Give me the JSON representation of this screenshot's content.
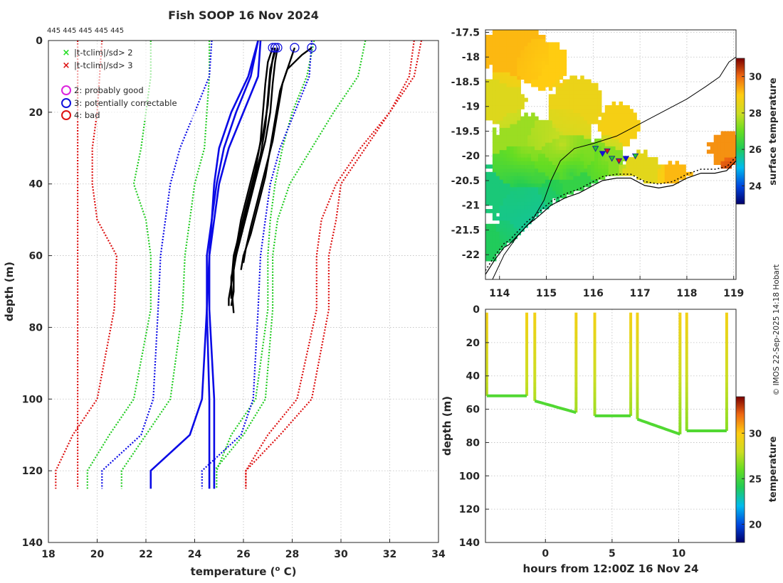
{
  "figure": {
    "title": "Fish SOOP 16 Nov 2024",
    "callsigns": "445 445 445 445 445",
    "watermark": "© IMOS 22-Sep-2025 14:18 Hobart"
  },
  "legend": {
    "items": [
      {
        "marker": "x",
        "color": "#22dd22",
        "label": "|t-tclim|/sd> 2"
      },
      {
        "marker": "x",
        "color": "#dd1111",
        "label": "|t-tclim|/sd> 3"
      },
      {
        "marker": "o",
        "color": "#dd22dd",
        "label": "2: probably good"
      },
      {
        "marker": "o",
        "color": "#1111dd",
        "label": "3: potentially correctable"
      },
      {
        "marker": "o",
        "color": "#dd1111",
        "label": "4: bad"
      }
    ]
  },
  "colors": {
    "profile": "#000000",
    "climatology_mean": "#0a0ae6",
    "sd2": "#22cc22",
    "sd3": "#dd1111",
    "coast": "#000000"
  },
  "chart_data": [
    {
      "id": "profiles",
      "type": "line",
      "xlabel": "temperature (°C)",
      "xlabel_parts": [
        "temperature (",
        "o",
        " C)"
      ],
      "ylabel": "depth (m)",
      "xlim": [
        18,
        34
      ],
      "ylim": [
        140,
        0
      ],
      "xticks": [
        18,
        20,
        22,
        24,
        26,
        28,
        30,
        32,
        34
      ],
      "yticks": [
        0,
        20,
        40,
        60,
        80,
        100,
        120,
        140
      ],
      "observed_profiles": [
        {
          "surface_temp": 27.3,
          "points": [
            [
              27.3,
              2
            ],
            [
              27.2,
              5
            ],
            [
              27.1,
              10
            ],
            [
              27.0,
              18
            ],
            [
              26.8,
              26
            ],
            [
              26.5,
              34
            ],
            [
              26.2,
              42
            ],
            [
              25.9,
              50
            ],
            [
              25.7,
              58
            ],
            [
              25.6,
              64
            ],
            [
              25.6,
              70
            ],
            [
              25.5,
              74
            ]
          ]
        },
        {
          "surface_temp": 27.4,
          "points": [
            [
              27.4,
              2
            ],
            [
              27.3,
              6
            ],
            [
              27.2,
              12
            ],
            [
              27.1,
              20
            ],
            [
              26.9,
              28
            ],
            [
              26.6,
              36
            ],
            [
              26.3,
              44
            ],
            [
              26.0,
              52
            ],
            [
              25.7,
              60
            ],
            [
              25.5,
              66
            ],
            [
              25.5,
              72
            ]
          ]
        },
        {
          "surface_temp": 28.1,
          "points": [
            [
              28.1,
              2
            ],
            [
              27.9,
              6
            ],
            [
              27.6,
              12
            ],
            [
              27.4,
              20
            ],
            [
              27.2,
              28
            ],
            [
              26.9,
              36
            ],
            [
              26.6,
              44
            ],
            [
              26.3,
              52
            ],
            [
              26.1,
              58
            ],
            [
              26.0,
              62
            ]
          ]
        },
        {
          "surface_temp": 28.8,
          "points": [
            [
              28.8,
              2
            ],
            [
              28.4,
              4
            ],
            [
              27.8,
              8
            ],
            [
              27.5,
              14
            ],
            [
              27.3,
              22
            ],
            [
              27.1,
              30
            ],
            [
              26.9,
              38
            ],
            [
              26.6,
              46
            ],
            [
              26.3,
              54
            ],
            [
              26.0,
              60
            ],
            [
              25.9,
              64
            ]
          ]
        },
        {
          "surface_temp": 27.2,
          "points": [
            [
              27.2,
              2
            ],
            [
              27.0,
              6
            ],
            [
              26.9,
              12
            ],
            [
              26.8,
              20
            ],
            [
              26.7,
              28
            ],
            [
              26.5,
              36
            ],
            [
              26.2,
              44
            ],
            [
              25.9,
              52
            ],
            [
              25.6,
              60
            ],
            [
              25.5,
              68
            ],
            [
              25.6,
              76
            ]
          ]
        },
        {
          "surface_temp": 27.3,
          "points": [
            [
              27.3,
              3
            ],
            [
              27.1,
              8
            ],
            [
              27.0,
              16
            ],
            [
              26.9,
              24
            ],
            [
              26.7,
              32
            ],
            [
              26.4,
              40
            ],
            [
              26.1,
              48
            ],
            [
              25.8,
              56
            ],
            [
              25.6,
              64
            ],
            [
              25.4,
              72
            ],
            [
              25.4,
              74
            ]
          ]
        }
      ],
      "climatology": {
        "depths": [
          0,
          10,
          20,
          30,
          40,
          50,
          60,
          75,
          100,
          110,
          120,
          125
        ],
        "mean": [
          [
            26.7,
            26.6,
            26.0,
            25.4,
            25.0,
            24.8,
            24.6,
            24.5,
            24.3,
            23.8,
            22.2,
            22.2
          ],
          [
            26.6,
            26.3,
            25.7,
            25.2,
            24.9,
            24.7,
            24.5,
            24.5,
            24.6,
            24.6,
            24.6,
            24.6
          ],
          [
            26.6,
            26.2,
            25.5,
            25.0,
            24.8,
            24.7,
            24.6,
            24.6,
            24.8,
            24.8,
            24.8,
            24.8
          ]
        ],
        "lower_sd2": [
          [
            24.6,
            24.6,
            24.5,
            24.4,
            24.0,
            23.8,
            23.6,
            23.5,
            23.0,
            22.0,
            21.0,
            21.0
          ],
          [
            22.2,
            22.2,
            22.0,
            21.8,
            21.5,
            22.0,
            22.2,
            22.2,
            21.5,
            20.5,
            19.6,
            19.6
          ]
        ],
        "upper_sd2": [
          [
            28.9,
            28.6,
            28.0,
            27.6,
            27.3,
            27.1,
            27.0,
            27.0,
            26.5,
            25.5,
            24.9,
            24.9
          ],
          [
            31.0,
            30.7,
            29.7,
            28.8,
            27.9,
            27.4,
            27.2,
            27.2,
            26.9,
            26.0,
            24.8,
            24.8
          ]
        ],
        "lower_sd3": [
          [
            20.2,
            20.1,
            20.0,
            19.8,
            19.8,
            20.0,
            20.8,
            20.7,
            20.0,
            19.0,
            18.3,
            18.3
          ],
          [
            19.2,
            19.2,
            19.2,
            19.2,
            19.2,
            19.2,
            19.2,
            19.2,
            19.2,
            19.2,
            19.2,
            19.2
          ]
        ],
        "upper_sd3": [
          [
            33.3,
            33.0,
            32.0,
            30.8,
            29.8,
            29.2,
            29.0,
            29.0,
            28.2,
            27.0,
            26.1,
            26.1
          ],
          [
            33.0,
            32.8,
            32.0,
            31.0,
            30.0,
            29.8,
            29.5,
            29.5,
            28.8,
            27.5,
            26.1,
            26.1
          ]
        ]
      }
    },
    {
      "id": "map",
      "type": "heatmap",
      "title": "",
      "xlim": [
        113.7,
        119.05
      ],
      "ylim": [
        -22.5,
        -17.45
      ],
      "xticks": [
        114,
        115,
        116,
        117,
        118,
        119
      ],
      "yticks": [
        -17.5,
        -18,
        -18.5,
        -19,
        -19.5,
        -20,
        -20.5,
        -21,
        -21.5,
        -22
      ],
      "colorbar": {
        "label": "surface temperature",
        "range": [
          23,
          31
        ],
        "ticks": [
          24,
          26,
          28,
          30
        ]
      },
      "sst_blobs": [
        {
          "lon": 114.3,
          "lat": -17.9,
          "r": 0.45,
          "temp": 29.2
        },
        {
          "lon": 114.9,
          "lat": -18.2,
          "r": 0.35,
          "temp": 29.0
        },
        {
          "lon": 114.0,
          "lat": -18.9,
          "r": 0.35,
          "temp": 28.3
        },
        {
          "lon": 115.6,
          "lat": -19.0,
          "r": 0.4,
          "temp": 28.6
        },
        {
          "lon": 116.5,
          "lat": -19.4,
          "r": 0.3,
          "temp": 28.8
        },
        {
          "lon": 114.5,
          "lat": -19.9,
          "r": 0.5,
          "temp": 27.5
        },
        {
          "lon": 115.3,
          "lat": -19.8,
          "r": 0.45,
          "temp": 28.0
        },
        {
          "lon": 114.4,
          "lat": -20.7,
          "r": 0.55,
          "temp": 25.8
        },
        {
          "lon": 115.5,
          "lat": -20.4,
          "r": 0.5,
          "temp": 26.3
        },
        {
          "lon": 114.7,
          "lat": -21.4,
          "r": 0.5,
          "temp": 25.6
        },
        {
          "lon": 113.95,
          "lat": -21.8,
          "r": 0.3,
          "temp": 26.0
        },
        {
          "lon": 116.2,
          "lat": -20.1,
          "r": 0.3,
          "temp": 27.3
        },
        {
          "lon": 117.0,
          "lat": -20.4,
          "r": 0.3,
          "temp": 28.4
        },
        {
          "lon": 117.7,
          "lat": -20.5,
          "r": 0.25,
          "temp": 29.2
        },
        {
          "lon": 118.8,
          "lat": -19.9,
          "r": 0.25,
          "temp": 29.6
        },
        {
          "lon": 118.9,
          "lat": -20.3,
          "r": 0.15,
          "temp": 30.5
        }
      ],
      "track": [
        {
          "lon": 116.05,
          "lat": -19.85,
          "flag": "good"
        },
        {
          "lon": 116.2,
          "lat": -19.95,
          "flag": "correctable"
        },
        {
          "lon": 116.3,
          "lat": -19.9,
          "flag": "bad"
        },
        {
          "lon": 116.4,
          "lat": -20.05,
          "flag": "good"
        },
        {
          "lon": 116.55,
          "lat": -20.1,
          "flag": "bad"
        },
        {
          "lon": 116.7,
          "lat": -20.05,
          "flag": "correctable"
        },
        {
          "lon": 116.9,
          "lat": -20.0,
          "flag": "good"
        }
      ],
      "coast": [
        [
          113.7,
          -22.4
        ],
        [
          113.9,
          -22.1
        ],
        [
          114.1,
          -21.85
        ],
        [
          114.2,
          -21.8
        ],
        [
          114.4,
          -21.6
        ],
        [
          114.6,
          -21.4
        ],
        [
          114.8,
          -21.25
        ],
        [
          115.1,
          -21.0
        ],
        [
          115.4,
          -20.85
        ],
        [
          115.7,
          -20.75
        ],
        [
          116.0,
          -20.6
        ],
        [
          116.2,
          -20.5
        ],
        [
          116.5,
          -20.45
        ],
        [
          116.8,
          -20.45
        ],
        [
          117.1,
          -20.6
        ],
        [
          117.4,
          -20.65
        ],
        [
          117.7,
          -20.6
        ],
        [
          118.0,
          -20.45
        ],
        [
          118.3,
          -20.35
        ],
        [
          118.6,
          -20.35
        ],
        [
          118.85,
          -20.3
        ],
        [
          119.05,
          -20.1
        ]
      ],
      "isobath": [
        [
          113.85,
          -22.5
        ],
        [
          114.1,
          -22.0
        ],
        [
          114.4,
          -21.6
        ],
        [
          114.7,
          -21.3
        ],
        [
          114.95,
          -20.9
        ],
        [
          115.1,
          -20.5
        ],
        [
          115.3,
          -20.1
        ],
        [
          115.6,
          -19.85
        ],
        [
          116.0,
          -19.75
        ],
        [
          116.5,
          -19.6
        ],
        [
          117.0,
          -19.35
        ],
        [
          117.5,
          -19.1
        ],
        [
          118.0,
          -18.85
        ],
        [
          118.4,
          -18.6
        ],
        [
          118.7,
          -18.4
        ],
        [
          118.9,
          -18.1
        ],
        [
          119.05,
          -18.0
        ]
      ]
    },
    {
      "id": "timeseries",
      "type": "scatter",
      "xlabel": "hours from 12:00Z 16 Nov 24",
      "ylabel": "depth (m)",
      "xlim": [
        -4.5,
        14.3
      ],
      "ylim": [
        140,
        0
      ],
      "xticks": [
        0,
        5,
        10
      ],
      "yticks": [
        0,
        20,
        40,
        60,
        80,
        100,
        120,
        140
      ],
      "colorbar": {
        "label": "temperature",
        "range": [
          18,
          34
        ],
        "ticks": [
          20,
          25,
          30
        ]
      },
      "casts": [
        {
          "start": -4.4,
          "end": -1.4,
          "bottom_start": 52,
          "bottom_end": 52
        },
        {
          "start": -0.8,
          "end": 2.3,
          "bottom_start": 55,
          "bottom_end": 62
        },
        {
          "start": 3.7,
          "end": 6.4,
          "bottom_start": 64,
          "bottom_end": 64
        },
        {
          "start": 6.9,
          "end": 10.1,
          "bottom_start": 66,
          "bottom_end": 75
        },
        {
          "start": 10.6,
          "end": 13.6,
          "bottom_start": 73,
          "bottom_end": 73
        }
      ]
    }
  ]
}
